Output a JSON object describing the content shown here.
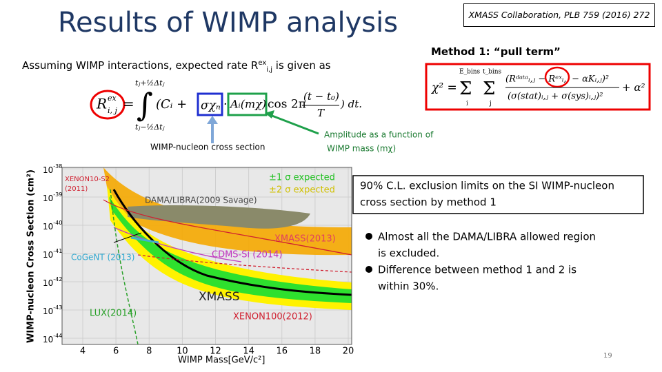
{
  "header": {
    "title": "Results of WIMP analysis",
    "reference": "XMASS Collaboration, PLB 759 (2016) 272"
  },
  "intro": {
    "before": "Assuming WIMP interactions, expected rate R",
    "sup": "ex",
    "sub": "i,j",
    "after": " is given as"
  },
  "method": "Method 1: “pull term”",
  "eq1": {
    "lhs": "R",
    "lhs_sup": "ex",
    "lhs_sub": "i, j",
    "eq": "=",
    "upper": "tⱼ+½Δtⱼ",
    "lower": "tⱼ−½Δtⱼ",
    "open": "(Cᵢ +",
    "sigma": "σχₙ",
    "dot": "·",
    "amp": "Aᵢ(mχ)",
    "cos": "cos 2π",
    "num": "(t − t₀)",
    "den": "T",
    "tail": ") dt."
  },
  "eq2": {
    "lhs": "χ² =",
    "sum1": "Σ",
    "sum1_top": "E_bins",
    "sum1_bot": "i",
    "sum2": "Σ",
    "sum2_top": "t_bins",
    "sum2_bot": "j",
    "num": "(Rᵈᵃᵗᵃᵢ,ⱼ − Rᵉˣᵢ,ⱼ − αKᵢ,ⱼ)²",
    "den": "(σ(stat)ᵢ,ⱼ + σ(sys)ᵢ,ⱼ)²",
    "tail": "+ α²"
  },
  "labels": {
    "cross_section": "WIMP-nucleon cross section",
    "amplitude": [
      "Amplitude as a function of",
      "WIMP mass (mχ)"
    ]
  },
  "box": [
    "90% C.L. exclusion limits on the SI WIMP-nucleon",
    "cross section by method 1"
  ],
  "bullets": [
    [
      "Almost all the DAMA/LIBRA allowed region",
      "is excluded."
    ],
    [
      "Difference between method 1 and 2 is",
      "within 30%."
    ]
  ],
  "plot": {
    "x_label": "WIMP Mass[GeV/c²]",
    "y_label": "WIMP-nucleon Cross Section (cm²)",
    "xticks": [
      4,
      6,
      8,
      10,
      12,
      14,
      16,
      18,
      20
    ],
    "yticks": [
      {
        "base": "10",
        "exp": "-38"
      },
      {
        "base": "10",
        "exp": "-39"
      },
      {
        "base": "10",
        "exp": "-40"
      },
      {
        "base": "10",
        "exp": "-41"
      },
      {
        "base": "10",
        "exp": "-42"
      },
      {
        "base": "10",
        "exp": "-43"
      },
      {
        "base": "10",
        "exp": "-44"
      }
    ],
    "annotations": {
      "xenon10": [
        "XENON10-S2",
        "(2011)"
      ],
      "dama": "DAMA/LIBRA(2009 Savage)",
      "s1": "±1 σ  expected",
      "s2": "±2 σ  expected",
      "xmass2013": "XMASS(2013)",
      "cogent": "CoGeNT (2013)",
      "cdms": "CDMS-Si (2014)",
      "xmass": "XMASS",
      "lux": "LUX(2014)",
      "xenon100": "XENON100(2012)"
    }
  },
  "page_number": "19"
}
